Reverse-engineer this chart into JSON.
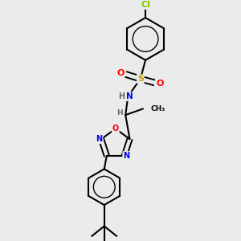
{
  "background_color": "#ebebeb",
  "bond_color": "#000000",
  "atom_colors": {
    "Cl": "#7fc800",
    "S": "#c8a000",
    "O": "#ff0000",
    "N": "#0000ee",
    "H": "#666666",
    "C": "#000000"
  },
  "figsize": [
    3.0,
    3.0
  ],
  "dpi": 100
}
